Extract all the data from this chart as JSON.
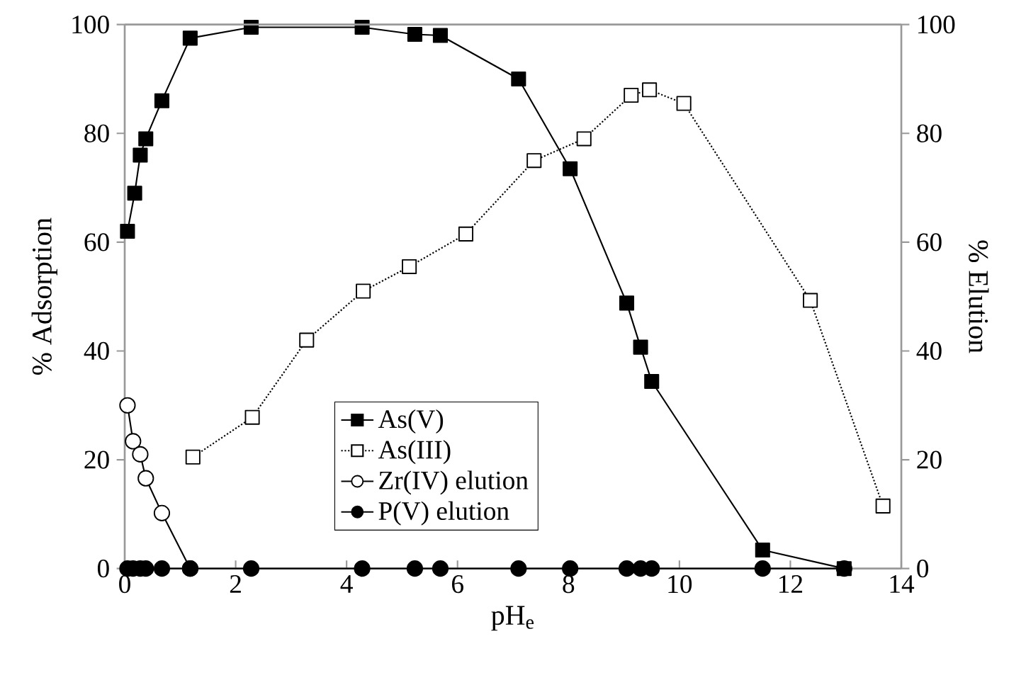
{
  "chart_data": {
    "type": "line",
    "xlabel": "pH$_{e}$",
    "ylabel": "% Adsorption",
    "y2label": "% Elution",
    "xlim": [
      0,
      14
    ],
    "xticks": [
      0,
      2,
      4,
      6,
      8,
      10,
      12,
      14
    ],
    "ylim": [
      0,
      100
    ],
    "yticks": [
      0,
      20,
      40,
      60,
      80,
      100
    ],
    "y2lim": [
      0,
      100
    ],
    "y2ticks": [
      0,
      20,
      40,
      60,
      80,
      100
    ],
    "legend": "bottom",
    "grid": false,
    "series": [
      {
        "name": "As(V)",
        "color": "#000000",
        "marker": "square",
        "line_style": "solid",
        "x": [
          0.05,
          0.18,
          0.28,
          0.38,
          0.67,
          1.18,
          2.28,
          4.28,
          5.23,
          5.69,
          7.1,
          8.03,
          9.05,
          9.3,
          9.5,
          11.5,
          12.97
        ],
        "values": [
          62,
          69,
          76,
          79,
          86,
          97.5,
          99.5,
          99.5,
          98.2,
          98,
          90,
          73.5,
          48.8,
          40.7,
          34.4,
          3.4,
          0
        ]
      },
      {
        "name": "As(III)",
        "color": "#ffffff",
        "marker": "square",
        "line_style": "dotted",
        "x": [
          1.23,
          2.3,
          3.28,
          4.3,
          5.13,
          6.15,
          7.38,
          8.28,
          9.13,
          9.46,
          10.08,
          12.36,
          13.67
        ],
        "values": [
          20.5,
          27.8,
          42,
          51,
          55.5,
          61.5,
          75,
          79,
          87,
          88,
          85.5,
          49.3,
          11.5
        ]
      },
      {
        "name": "Zr(IV) elution",
        "color": "#ffffff",
        "marker": "circle",
        "line_style": "solid",
        "axis": "y2",
        "x": [
          0.05,
          0.15,
          0.28,
          0.38,
          0.67,
          1.18
        ],
        "values": [
          30,
          23.4,
          21,
          16.6,
          10.2,
          0
        ]
      },
      {
        "name": "P(V) elution",
        "color": "#000000",
        "marker": "circle",
        "line_style": "solid",
        "axis": "y2",
        "x": [
          0.05,
          0.15,
          0.28,
          0.38,
          0.67,
          1.18,
          2.28,
          4.28,
          5.23,
          5.69,
          7.1,
          8.03,
          9.05,
          9.3,
          9.5,
          11.5,
          12.97
        ],
        "values": [
          0,
          0,
          0,
          0,
          0,
          0,
          0,
          0,
          0,
          0,
          0,
          0,
          0,
          0,
          0,
          0,
          0
        ]
      }
    ]
  }
}
